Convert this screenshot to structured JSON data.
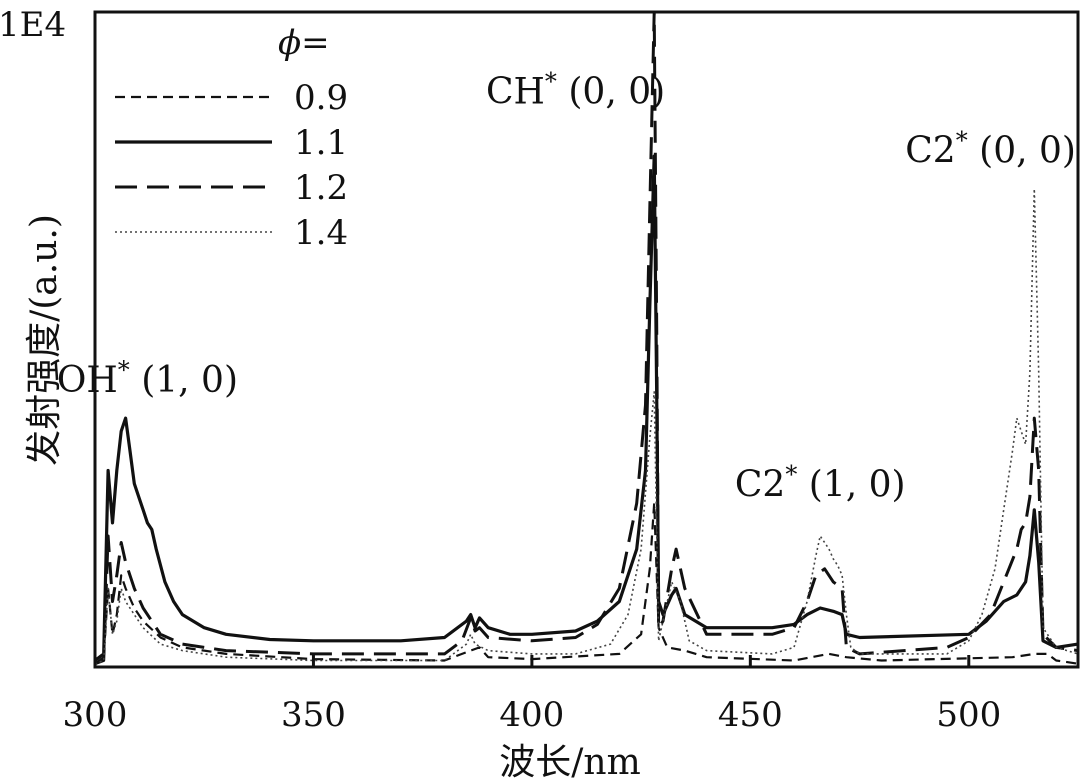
{
  "chart_data": {
    "type": "line",
    "title": "",
    "xlabel": "波长/nm",
    "ylabel": "发射强度/(a.u.)",
    "y_multiplier": "1E4",
    "xlim": [
      300,
      525
    ],
    "ylim": [
      0,
      10
    ],
    "xticks": [
      300,
      350,
      400,
      450,
      500
    ],
    "legend": {
      "title": "ϕ=",
      "position": "top-left",
      "entries": [
        "0.9",
        "1.1",
        "1.2",
        "1.4"
      ]
    },
    "annotations": [
      {
        "text": "OH* (1, 0)",
        "x": 312,
        "y": 4.2
      },
      {
        "text": "CH* (0, 0)",
        "x": 410,
        "y": 8.6
      },
      {
        "text": "C2* (1, 0)",
        "x": 466,
        "y": 2.6
      },
      {
        "text": "C2* (0, 0)",
        "x": 505,
        "y": 7.7
      }
    ],
    "series": [
      {
        "name": "0.9",
        "style": "short-dash",
        "points": [
          [
            300,
            0.05
          ],
          [
            302,
            0.15
          ],
          [
            303,
            1.2
          ],
          [
            304,
            0.5
          ],
          [
            305,
            0.8
          ],
          [
            306,
            1.4
          ],
          [
            307,
            1.2
          ],
          [
            309,
            0.9
          ],
          [
            311,
            0.7
          ],
          [
            315,
            0.45
          ],
          [
            320,
            0.3
          ],
          [
            330,
            0.2
          ],
          [
            350,
            0.12
          ],
          [
            380,
            0.1
          ],
          [
            386,
            0.25
          ],
          [
            388,
            0.3
          ],
          [
            390,
            0.15
          ],
          [
            400,
            0.12
          ],
          [
            420,
            0.2
          ],
          [
            425,
            0.5
          ],
          [
            427,
            1.5
          ],
          [
            428,
            2.5
          ],
          [
            429,
            0.6
          ],
          [
            431,
            0.3
          ],
          [
            435,
            0.25
          ],
          [
            440,
            0.15
          ],
          [
            460,
            0.1
          ],
          [
            468,
            0.2
          ],
          [
            472,
            0.15
          ],
          [
            480,
            0.1
          ],
          [
            510,
            0.15
          ],
          [
            515,
            0.2
          ],
          [
            518,
            0.2
          ],
          [
            520,
            0.1
          ],
          [
            525,
            0.05
          ]
        ]
      },
      {
        "name": "1.1",
        "style": "solid",
        "points": [
          [
            300,
            0.1
          ],
          [
            302,
            0.2
          ],
          [
            303,
            3.0
          ],
          [
            304,
            2.2
          ],
          [
            305,
            3.0
          ],
          [
            306,
            3.6
          ],
          [
            307,
            3.8
          ],
          [
            308,
            3.3
          ],
          [
            309,
            2.8
          ],
          [
            310,
            2.6
          ],
          [
            311,
            2.4
          ],
          [
            312,
            2.2
          ],
          [
            313,
            2.1
          ],
          [
            314,
            1.8
          ],
          [
            316,
            1.3
          ],
          [
            318,
            1.0
          ],
          [
            320,
            0.8
          ],
          [
            325,
            0.6
          ],
          [
            330,
            0.5
          ],
          [
            340,
            0.42
          ],
          [
            350,
            0.4
          ],
          [
            370,
            0.4
          ],
          [
            380,
            0.45
          ],
          [
            385,
            0.7
          ],
          [
            386,
            0.8
          ],
          [
            387,
            0.6
          ],
          [
            388,
            0.75
          ],
          [
            390,
            0.6
          ],
          [
            395,
            0.5
          ],
          [
            400,
            0.5
          ],
          [
            410,
            0.55
          ],
          [
            415,
            0.7
          ],
          [
            420,
            1.0
          ],
          [
            424,
            1.8
          ],
          [
            426,
            3.0
          ],
          [
            427,
            5.5
          ],
          [
            428,
            7.8
          ],
          [
            428.6,
            4.0
          ],
          [
            429,
            1.0
          ],
          [
            430,
            0.8
          ],
          [
            432,
            1.1
          ],
          [
            433,
            1.2
          ],
          [
            435,
            0.8
          ],
          [
            440,
            0.6
          ],
          [
            455,
            0.6
          ],
          [
            460,
            0.65
          ],
          [
            463,
            0.8
          ],
          [
            466,
            0.9
          ],
          [
            469,
            0.85
          ],
          [
            471,
            0.8
          ],
          [
            472,
            0.5
          ],
          [
            475,
            0.45
          ],
          [
            500,
            0.5
          ],
          [
            504,
            0.7
          ],
          [
            508,
            1.0
          ],
          [
            511,
            1.1
          ],
          [
            513,
            1.3
          ],
          [
            514,
            1.7
          ],
          [
            515,
            2.4
          ],
          [
            516,
            1.6
          ],
          [
            517,
            0.4
          ],
          [
            520,
            0.3
          ],
          [
            525,
            0.35
          ]
        ]
      },
      {
        "name": "1.2",
        "style": "long-dash",
        "points": [
          [
            300,
            0.05
          ],
          [
            302,
            0.1
          ],
          [
            303,
            2.0
          ],
          [
            304,
            1.0
          ],
          [
            305,
            1.4
          ],
          [
            306,
            1.9
          ],
          [
            307,
            1.6
          ],
          [
            309,
            1.2
          ],
          [
            311,
            0.9
          ],
          [
            315,
            0.5
          ],
          [
            320,
            0.35
          ],
          [
            330,
            0.25
          ],
          [
            350,
            0.2
          ],
          [
            380,
            0.2
          ],
          [
            384,
            0.4
          ],
          [
            386,
            0.75
          ],
          [
            387,
            0.55
          ],
          [
            388,
            0.6
          ],
          [
            390,
            0.45
          ],
          [
            400,
            0.4
          ],
          [
            410,
            0.45
          ],
          [
            415,
            0.65
          ],
          [
            420,
            1.2
          ],
          [
            424,
            2.5
          ],
          [
            426,
            4.0
          ],
          [
            427,
            7.0
          ],
          [
            428,
            10.0
          ],
          [
            428.6,
            5.0
          ],
          [
            429,
            0.6
          ],
          [
            430,
            0.7
          ],
          [
            432,
            1.5
          ],
          [
            433,
            1.8
          ],
          [
            435,
            1.2
          ],
          [
            440,
            0.5
          ],
          [
            455,
            0.5
          ],
          [
            460,
            0.6
          ],
          [
            463,
            1.0
          ],
          [
            465,
            1.4
          ],
          [
            467,
            1.5
          ],
          [
            469,
            1.3
          ],
          [
            471,
            1.2
          ],
          [
            472,
            0.3
          ],
          [
            475,
            0.2
          ],
          [
            495,
            0.3
          ],
          [
            500,
            0.45
          ],
          [
            505,
            0.8
          ],
          [
            508,
            1.3
          ],
          [
            511,
            1.8
          ],
          [
            512,
            2.1
          ],
          [
            513,
            2.2
          ],
          [
            514,
            2.6
          ],
          [
            515,
            3.8
          ],
          [
            516,
            3.0
          ],
          [
            517,
            0.5
          ],
          [
            520,
            0.3
          ],
          [
            525,
            0.25
          ]
        ]
      },
      {
        "name": "1.4",
        "style": "dotted",
        "points": [
          [
            300,
            0.05
          ],
          [
            302,
            0.1
          ],
          [
            303,
            1.2
          ],
          [
            304,
            0.5
          ],
          [
            305,
            0.7
          ],
          [
            306,
            1.2
          ],
          [
            307,
            1.0
          ],
          [
            309,
            0.8
          ],
          [
            311,
            0.6
          ],
          [
            315,
            0.35
          ],
          [
            320,
            0.25
          ],
          [
            330,
            0.15
          ],
          [
            350,
            0.1
          ],
          [
            380,
            0.1
          ],
          [
            385,
            0.35
          ],
          [
            386,
            0.5
          ],
          [
            387,
            0.35
          ],
          [
            390,
            0.25
          ],
          [
            400,
            0.2
          ],
          [
            410,
            0.2
          ],
          [
            418,
            0.35
          ],
          [
            422,
            0.8
          ],
          [
            425,
            1.8
          ],
          [
            427,
            3.5
          ],
          [
            428,
            4.2
          ],
          [
            428.6,
            2.0
          ],
          [
            429,
            0.4
          ],
          [
            430,
            0.7
          ],
          [
            432,
            1.3
          ],
          [
            434,
            1.0
          ],
          [
            436,
            0.4
          ],
          [
            440,
            0.25
          ],
          [
            455,
            0.2
          ],
          [
            460,
            0.3
          ],
          [
            463,
            1.0
          ],
          [
            465,
            1.7
          ],
          [
            466,
            2.0
          ],
          [
            467,
            1.9
          ],
          [
            468,
            1.8
          ],
          [
            469,
            1.65
          ],
          [
            470,
            1.55
          ],
          [
            471,
            1.4
          ],
          [
            472,
            0.8
          ],
          [
            473,
            0.3
          ],
          [
            475,
            0.2
          ],
          [
            495,
            0.2
          ],
          [
            500,
            0.4
          ],
          [
            503,
            0.8
          ],
          [
            506,
            1.5
          ],
          [
            508,
            2.4
          ],
          [
            510,
            3.3
          ],
          [
            511,
            3.8
          ],
          [
            512,
            3.6
          ],
          [
            513,
            3.4
          ],
          [
            514,
            4.5
          ],
          [
            515,
            7.3
          ],
          [
            516,
            4.5
          ],
          [
            517,
            0.6
          ],
          [
            520,
            0.3
          ],
          [
            525,
            0.2
          ]
        ]
      }
    ]
  }
}
